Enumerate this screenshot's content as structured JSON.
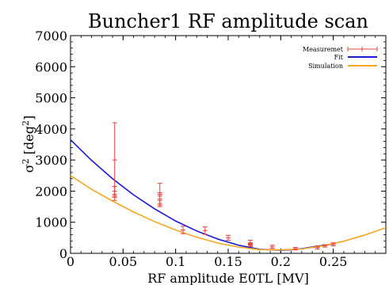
{
  "chart_data": {
    "type": "scatter",
    "title": "Buncher1 RF amplitude scan",
    "xlabel": "RF amplitude E0TL [MV]",
    "ylabel_base": "σ",
    "ylabel_sup": "2",
    "ylabel_unit": " [deg",
    "ylabel_unit_sup": "2",
    "ylabel_close": "]",
    "xlim": [
      0,
      0.3
    ],
    "ylim": [
      0,
      7000
    ],
    "xticks": [
      0,
      0.05,
      0.1,
      0.15,
      0.2,
      0.25
    ],
    "xtick_labels": [
      "0",
      "0.05",
      "0.1",
      "0.15",
      "0.2",
      "0.25"
    ],
    "yticks": [
      0,
      1000,
      2000,
      3000,
      4000,
      5000,
      6000,
      7000
    ],
    "ytick_labels": [
      "0",
      "1000",
      "2000",
      "3000",
      "4000",
      "5000",
      "6000",
      "7000"
    ],
    "legend_position": "top-right",
    "series": [
      {
        "name": "Measuremet",
        "kind": "errorbar",
        "color": "#e8403c",
        "points": [
          {
            "x": 0.042,
            "y": 3000,
            "err_low": 1200,
            "err_high": 1200
          },
          {
            "x": 0.042,
            "y": 2000,
            "err_low": 150,
            "err_high": 150
          },
          {
            "x": 0.042,
            "y": 1800,
            "err_low": 100,
            "err_high": 100
          },
          {
            "x": 0.085,
            "y": 1900,
            "err_low": 350,
            "err_high": 350
          },
          {
            "x": 0.085,
            "y": 1850,
            "err_low": 100,
            "err_high": 100
          },
          {
            "x": 0.085,
            "y": 1600,
            "err_low": 100,
            "err_high": 100
          },
          {
            "x": 0.107,
            "y": 750,
            "err_low": 120,
            "err_high": 120
          },
          {
            "x": 0.128,
            "y": 730,
            "err_low": 120,
            "err_high": 120
          },
          {
            "x": 0.15,
            "y": 500,
            "err_low": 80,
            "err_high": 80
          },
          {
            "x": 0.171,
            "y": 320,
            "err_low": 100,
            "err_high": 100
          },
          {
            "x": 0.171,
            "y": 280,
            "err_low": 60,
            "err_high": 60
          },
          {
            "x": 0.171,
            "y": 260,
            "err_low": 40,
            "err_high": 40
          },
          {
            "x": 0.192,
            "y": 210,
            "err_low": 50,
            "err_high": 50
          },
          {
            "x": 0.214,
            "y": 150,
            "err_low": 40,
            "err_high": 40
          },
          {
            "x": 0.235,
            "y": 190,
            "err_low": 50,
            "err_high": 50
          },
          {
            "x": 0.242,
            "y": 240,
            "err_low": 40,
            "err_high": 40
          },
          {
            "x": 0.25,
            "y": 290,
            "err_low": 50,
            "err_high": 50
          }
        ]
      },
      {
        "name": "Fit",
        "kind": "line",
        "color": "#1a1ad6",
        "x": [
          0,
          0.02,
          0.04,
          0.06,
          0.08,
          0.1,
          0.12,
          0.14,
          0.16,
          0.18,
          0.2,
          0.21,
          0.22,
          0.235,
          0.25
        ],
        "y": [
          3650,
          2990,
          2400,
          1880,
          1430,
          1040,
          720,
          460,
          260,
          130,
          100,
          115,
          150,
          230,
          300
        ]
      },
      {
        "name": "Simulation",
        "kind": "line",
        "color": "#f5a623",
        "x": [
          0,
          0.02,
          0.04,
          0.06,
          0.08,
          0.1,
          0.12,
          0.14,
          0.16,
          0.18,
          0.2,
          0.22,
          0.24,
          0.26,
          0.28,
          0.3
        ],
        "y": [
          2500,
          2060,
          1680,
          1330,
          1020,
          750,
          520,
          330,
          200,
          120,
          110,
          140,
          240,
          390,
          590,
          820
        ]
      }
    ]
  }
}
